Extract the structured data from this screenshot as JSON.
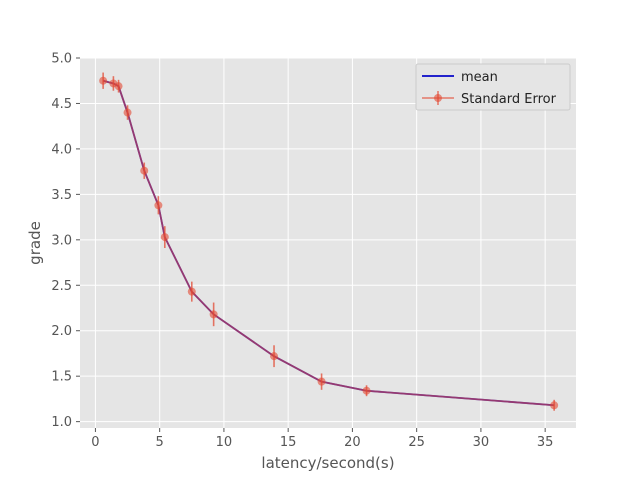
{
  "chart_data": {
    "type": "line",
    "title": "",
    "xlabel": "latency/second(s)",
    "ylabel": "grade",
    "xlim": [
      -1.2,
      37.4
    ],
    "ylim": [
      0.93,
      5.0
    ],
    "x_ticks": [
      0,
      5,
      10,
      15,
      20,
      25,
      30,
      35
    ],
    "y_ticks": [
      1.0,
      1.5,
      2.0,
      2.5,
      3.0,
      3.5,
      4.0,
      4.5,
      5.0
    ],
    "x_tick_labels": [
      "0",
      "5",
      "10",
      "15",
      "20",
      "25",
      "30",
      "35"
    ],
    "y_tick_labels": [
      "1.0",
      "1.5",
      "2.0",
      "2.5",
      "3.0",
      "3.5",
      "4.0",
      "4.5",
      "5.0"
    ],
    "grid": true,
    "legend_position": "top-right",
    "x": [
      0.6,
      1.4,
      1.8,
      2.5,
      3.8,
      4.9,
      5.4,
      7.5,
      9.2,
      13.9,
      17.6,
      21.1,
      35.7
    ],
    "series": [
      {
        "name": "mean",
        "kind": "line",
        "color": "#2222cc",
        "values": [
          4.75,
          4.72,
          4.69,
          4.4,
          3.76,
          3.38,
          3.03,
          2.43,
          2.18,
          1.72,
          1.44,
          1.34,
          1.18
        ]
      },
      {
        "name": "Standard Error",
        "kind": "errorbar",
        "color": "#e24a33",
        "values": [
          4.75,
          4.72,
          4.69,
          4.4,
          3.76,
          3.38,
          3.03,
          2.43,
          2.18,
          1.72,
          1.44,
          1.34,
          1.18
        ],
        "errors": [
          0.09,
          0.08,
          0.07,
          0.08,
          0.09,
          0.1,
          0.12,
          0.11,
          0.13,
          0.12,
          0.09,
          0.06,
          0.06
        ]
      }
    ]
  },
  "colors": {
    "plot_background": "#e5e5e5",
    "grid": "#ffffff",
    "mean_line": "#2222cc",
    "error_series": "#e24a33",
    "overlap_line": "#7a2aa8"
  }
}
